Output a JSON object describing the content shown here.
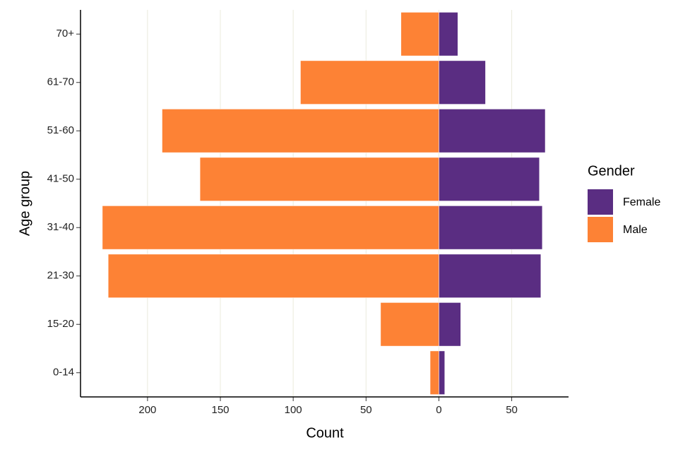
{
  "chart_data": {
    "type": "bar",
    "orientation": "horizontal",
    "x_label": "Count",
    "y_label": "Age group",
    "categories": [
      "0-14",
      "15-20",
      "21-30",
      "31-40",
      "41-50",
      "51-60",
      "61-70",
      "70+"
    ],
    "series": [
      {
        "name": "Female",
        "color": "#5a2d82",
        "values": [
          4,
          15,
          70,
          71,
          69,
          73,
          32,
          13
        ]
      },
      {
        "name": "Male",
        "color": "#fd8235",
        "values": [
          -6,
          -40,
          -227,
          -231,
          -164,
          -190,
          -95,
          -26
        ]
      }
    ],
    "xlim": [
      -246,
      89
    ],
    "xticks": [
      {
        "value": -200,
        "label": "200"
      },
      {
        "value": -150,
        "label": "150"
      },
      {
        "value": -100,
        "label": "100"
      },
      {
        "value": -50,
        "label": "50"
      },
      0,
      50
    ],
    "grid": true,
    "legend": {
      "title": "Gender",
      "position": "right"
    }
  }
}
